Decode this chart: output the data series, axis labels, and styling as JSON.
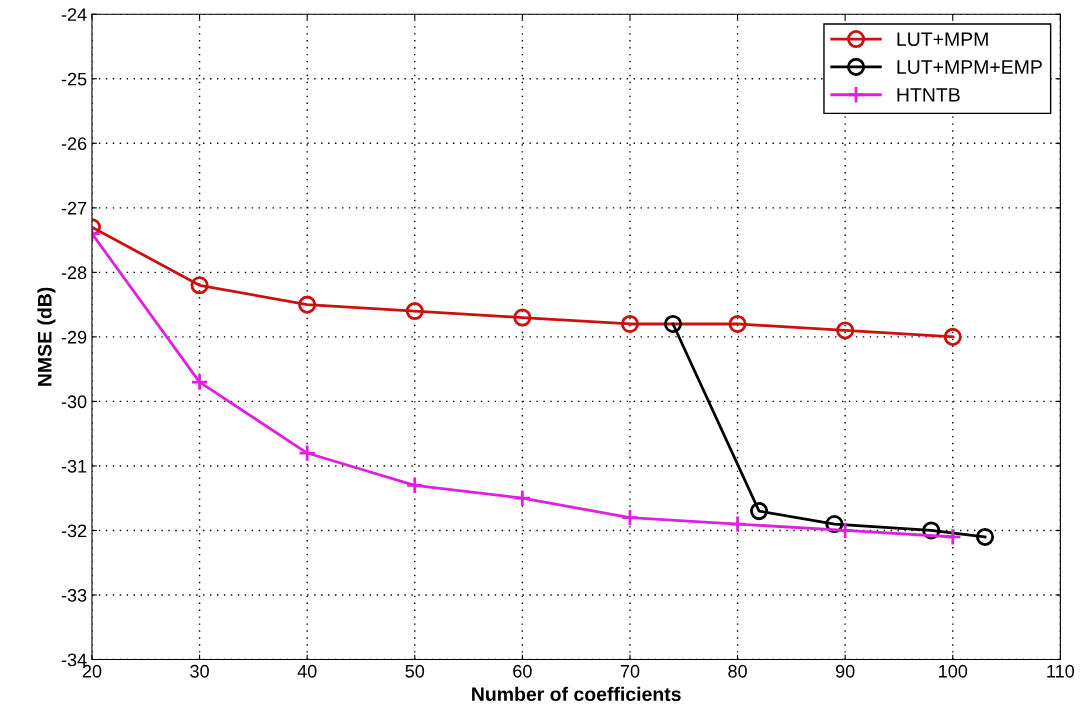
{
  "chart_data": {
    "type": "line",
    "xlabel": "Number of coefficients",
    "ylabel": "NMSE (dB)",
    "xlim": [
      20,
      110
    ],
    "xticks": [
      20,
      30,
      40,
      50,
      60,
      70,
      80,
      90,
      100,
      110
    ],
    "ylim": [
      -34,
      -24
    ],
    "yticks": [
      -34,
      -33,
      -32,
      -31,
      -30,
      -29,
      -28,
      -27,
      -26,
      -25,
      -24
    ],
    "grid": true,
    "legend": "top right",
    "line_style": "solid",
    "series": [
      {
        "name": "LUT+MPM",
        "color": "#cc1010",
        "marker": "circle",
        "x": [
          20,
          30,
          40,
          50,
          60,
          70,
          80,
          90,
          100
        ],
        "values": [
          -27.3,
          -28.2,
          -28.5,
          -28.6,
          -28.7,
          -28.8,
          -28.8,
          -28.9,
          -29.0
        ]
      },
      {
        "name": "LUT+MPM+EMP",
        "color": "#000000",
        "marker": "circle",
        "x": [
          74,
          82,
          89,
          98,
          103
        ],
        "values": [
          -28.8,
          -31.7,
          -31.9,
          -32.0,
          -32.1
        ]
      },
      {
        "name": "HTNTB",
        "color": "#e020e0",
        "marker": "cross",
        "x": [
          20,
          30,
          40,
          50,
          60,
          70,
          80,
          90,
          100
        ],
        "values": [
          -27.4,
          -29.7,
          -30.8,
          -31.3,
          -31.5,
          -31.8,
          -31.9,
          -32.0,
          -32.1
        ]
      }
    ]
  }
}
